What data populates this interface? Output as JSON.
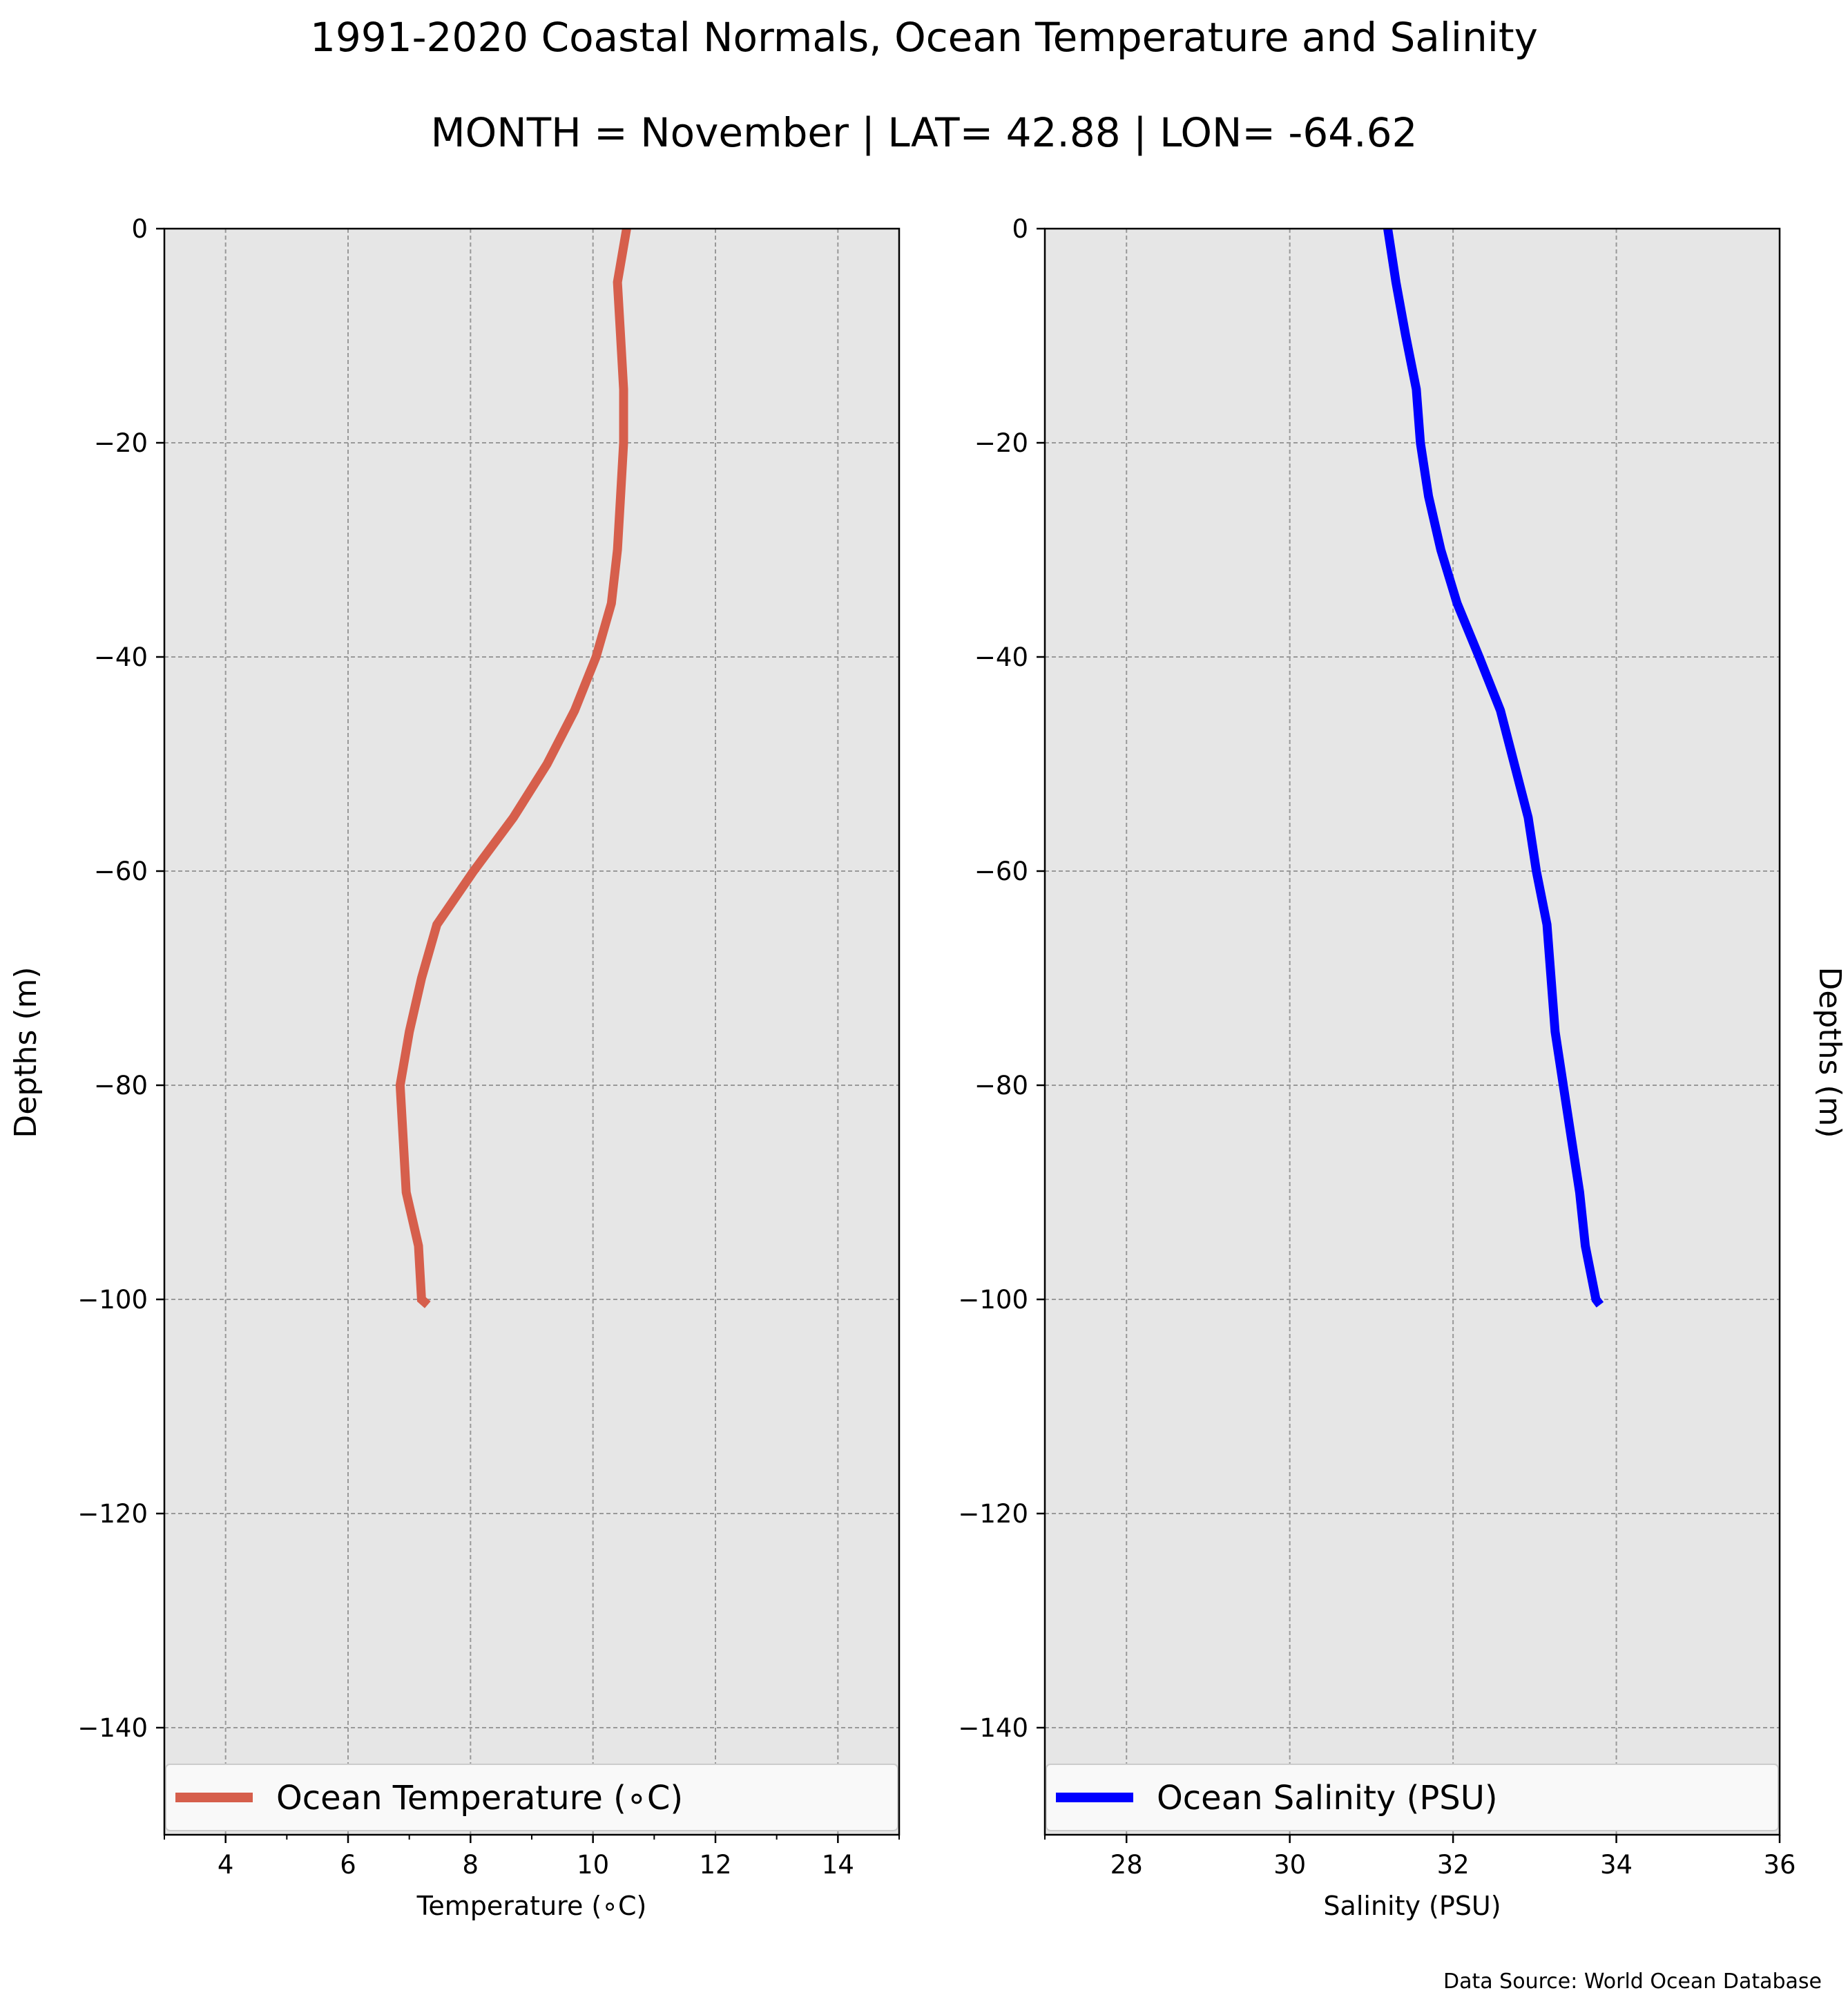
{
  "title": "1991-2020 Coastal Normals, Ocean Temperature and Salinity",
  "subtitle": "MONTH = November | LAT= 42.88 | LON= -64.62",
  "source": "Data Source: World Ocean Database",
  "colors": {
    "temperature": "#d65f4c",
    "salinity": "#0000ff",
    "plot_background": "#e6e6e6",
    "grid": "#999999"
  },
  "chart_data": [
    {
      "type": "line",
      "id": "temperature",
      "xlabel": "Temperature (∘C)",
      "ylabel": "Depths (m)",
      "ylabel_side": "left",
      "xlim": [
        3,
        15
      ],
      "ylim": [
        -150,
        0
      ],
      "xticks": [
        4,
        6,
        8,
        10,
        12,
        14
      ],
      "xtick_labels": [
        "4",
        "6",
        "8",
        "10",
        "12",
        "14"
      ],
      "x_minor_ticks": [
        3,
        5,
        7,
        9,
        11,
        13,
        15
      ],
      "yticks": [
        0,
        -20,
        -40,
        -60,
        -80,
        -100,
        -120,
        -140
      ],
      "ytick_labels": [
        "0",
        "−20",
        "−40",
        "−60",
        "−80",
        "−100",
        "−120",
        "−140"
      ],
      "grid": true,
      "legend_position": "bottom",
      "series": [
        {
          "name": "Ocean Temperature (∘C)",
          "color": "#d65f4c",
          "x": [
            10.55,
            10.4,
            10.45,
            10.5,
            10.5,
            10.45,
            10.4,
            10.3,
            10.05,
            9.7,
            9.25,
            8.7,
            8.05,
            7.45,
            7.2,
            7.0,
            6.85,
            6.9,
            6.95,
            7.15,
            7.2,
            7.3
          ],
          "depth": [
            0,
            -5,
            -10,
            -15,
            -20,
            -25,
            -30,
            -35,
            -40,
            -45,
            -50,
            -55,
            -60,
            -65,
            -70,
            -75,
            -80,
            -85,
            -90,
            -95,
            -100,
            -100.5
          ]
        }
      ]
    },
    {
      "type": "line",
      "id": "salinity",
      "xlabel": "Salinity (PSU)",
      "ylabel": "Depths (m)",
      "ylabel_side": "right",
      "xlim": [
        27,
        36
      ],
      "ylim": [
        -150,
        0
      ],
      "xticks": [
        28,
        30,
        32,
        34,
        36
      ],
      "xtick_labels": [
        "28",
        "30",
        "32",
        "34",
        "36"
      ],
      "x_minor_ticks": [
        27
      ],
      "yticks": [
        0,
        -20,
        -40,
        -60,
        -80,
        -100,
        -120,
        -140
      ],
      "ytick_labels": [
        "0",
        "−20",
        "−40",
        "−60",
        "−80",
        "−100",
        "−120",
        "−140"
      ],
      "grid": true,
      "legend_position": "bottom",
      "series": [
        {
          "name": "Ocean Salinity (PSU)",
          "color": "#0000ff",
          "x": [
            31.2,
            31.3,
            31.42,
            31.55,
            31.6,
            31.7,
            31.85,
            32.05,
            32.32,
            32.58,
            32.75,
            32.92,
            33.02,
            33.15,
            33.2,
            33.25,
            33.35,
            33.45,
            33.55,
            33.62,
            33.75,
            33.8
          ],
          "depth": [
            0,
            -5,
            -10,
            -15,
            -20,
            -25,
            -30,
            -35,
            -40,
            -45,
            -50,
            -55,
            -60,
            -65,
            -70,
            -75,
            -80,
            -85,
            -90,
            -95,
            -100,
            -100.5
          ]
        }
      ]
    }
  ]
}
